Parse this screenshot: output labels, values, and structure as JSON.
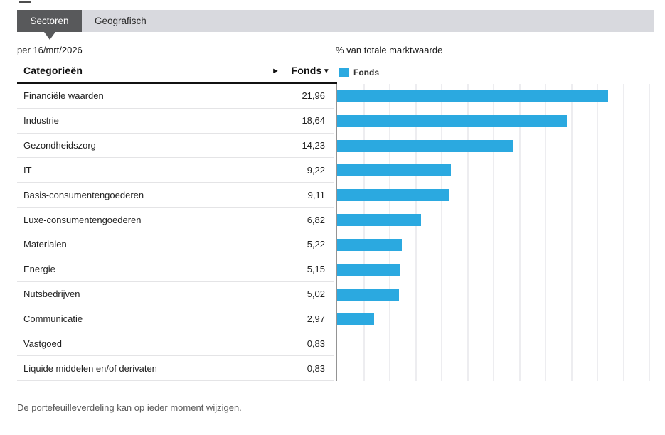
{
  "tabs": [
    {
      "label": "Sectoren",
      "selected": true
    },
    {
      "label": "Geografisch",
      "selected": false
    }
  ],
  "as_of_date": "per 16/mrt/2026",
  "table_header": {
    "categories_label": "Categorieën",
    "fonds_label": "Fonds",
    "sort_indicator": "▼",
    "expand_indicator": "►"
  },
  "chart_data": {
    "type": "bar",
    "orientation": "horizontal",
    "title": "% van totale marktwaarde",
    "legend": [
      {
        "label": "Fonds",
        "color": "#2BA9E0"
      }
    ],
    "legend_position": "top-left",
    "grid": "vertical-only",
    "gridline_count": 12,
    "xlim": [
      0,
      25.7
    ],
    "categories": [
      "Financiële waarden",
      "Industrie",
      "Gezondheidszorg",
      "IT",
      "Basis-consumentengoederen",
      "Luxe-consumentengoederen",
      "Materialen",
      "Energie",
      "Nutsbedrijven",
      "Communicatie",
      "Vastgoed",
      "Liquide middelen en/of derivaten"
    ],
    "values": [
      21.96,
      18.64,
      14.23,
      9.22,
      9.11,
      6.82,
      5.22,
      5.15,
      5.02,
      2.97,
      0.83,
      0.83
    ],
    "value_labels": [
      "21,96",
      "18,64",
      "14,23",
      "9,22",
      "9,11",
      "6,82",
      "5,22",
      "5,15",
      "5,02",
      "2,97",
      "0,83",
      "0,83"
    ],
    "bar_shown": [
      true,
      true,
      true,
      true,
      true,
      true,
      true,
      true,
      true,
      true,
      false,
      false
    ]
  },
  "footnote": "De portefeuilleverdeling kan op ieder moment wijzigen.",
  "colors": {
    "bar": "#2BA9E0",
    "tab_active_bg": "#58595B",
    "tab_bar_bg": "#D8D9DE",
    "header_rule": "#111111"
  }
}
